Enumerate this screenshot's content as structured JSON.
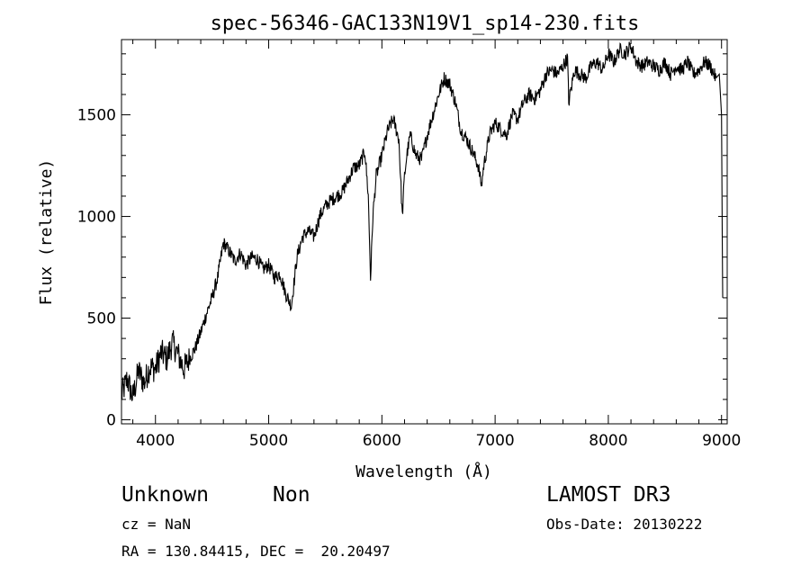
{
  "chart_data": {
    "type": "line",
    "title": "spec-56346-GAC133N19V1_sp14-230.fits",
    "xlabel": "Wavelength (Å)",
    "ylabel": "Flux (relative)",
    "xlim": [
      3700,
      9050
    ],
    "ylim": [
      -20,
      1870
    ],
    "xticks": [
      4000,
      5000,
      6000,
      7000,
      8000,
      9000
    ],
    "yticks": [
      0,
      500,
      1000,
      1500
    ],
    "xtick_labels": [
      "4000",
      "5000",
      "6000",
      "7000",
      "8000",
      "9000"
    ],
    "ytick_labels": [
      "0",
      "500",
      "1000",
      "1500"
    ],
    "grid": false,
    "legend": "none",
    "series": [
      {
        "x": [
          3700,
          3750,
          3800,
          3850,
          3900,
          3950,
          4000,
          4050,
          4100,
          4150,
          4200,
          4250,
          4300,
          4350,
          4400,
          4450,
          4500,
          4550,
          4600,
          4650,
          4700,
          4750,
          4800,
          4850,
          4900,
          4950,
          5000,
          5050,
          5100,
          5150,
          5200,
          5250,
          5300,
          5350,
          5400,
          5450,
          5500,
          5550,
          5600,
          5650,
          5700,
          5750,
          5800,
          5850,
          5880,
          5900,
          5920,
          5950,
          6000,
          6050,
          6100,
          6150,
          6180,
          6200,
          6220,
          6250,
          6300,
          6350,
          6400,
          6450,
          6500,
          6550,
          6600,
          6650,
          6700,
          6750,
          6800,
          6850,
          6880,
          6900,
          6950,
          7000,
          7050,
          7100,
          7150,
          7200,
          7250,
          7300,
          7350,
          7400,
          7450,
          7500,
          7550,
          7600,
          7640,
          7650,
          7700,
          7750,
          7800,
          7850,
          7900,
          7950,
          8000,
          8050,
          8100,
          8150,
          8200,
          8250,
          8300,
          8350,
          8400,
          8450,
          8500,
          8550,
          8600,
          8650,
          8700,
          8750,
          8800,
          8850,
          8900,
          8950,
          8980,
          9000,
          9010
        ],
        "y": [
          120,
          200,
          110,
          240,
          180,
          260,
          250,
          330,
          300,
          380,
          320,
          250,
          300,
          350,
          430,
          520,
          600,
          700,
          870,
          830,
          780,
          820,
          760,
          800,
          790,
          740,
          760,
          700,
          720,
          620,
          560,
          800,
          900,
          930,
          900,
          1000,
          1050,
          1080,
          1100,
          1120,
          1180,
          1240,
          1250,
          1320,
          1100,
          700,
          1000,
          1200,
          1300,
          1420,
          1480,
          1380,
          1000,
          1200,
          1300,
          1400,
          1300,
          1280,
          1400,
          1500,
          1600,
          1680,
          1650,
          1560,
          1420,
          1380,
          1320,
          1250,
          1150,
          1250,
          1400,
          1460,
          1430,
          1400,
          1500,
          1480,
          1560,
          1600,
          1580,
          1620,
          1700,
          1720,
          1700,
          1740,
          1780,
          1560,
          1720,
          1700,
          1680,
          1740,
          1760,
          1720,
          1800,
          1760,
          1820,
          1800,
          1840,
          1760,
          1740,
          1760,
          1740,
          1720,
          1760,
          1700,
          1740,
          1720,
          1760,
          1700,
          1720,
          1760,
          1740,
          1680,
          1700,
          1500,
          600
        ]
      }
    ]
  },
  "annotations": {
    "object_class": "Unknown",
    "subclass": "Non",
    "survey": "LAMOST DR3",
    "redshift": "cz = NaN",
    "obs_date": "Obs-Date: 20130222",
    "coords": "RA = 130.84415, DEC =  20.20497"
  }
}
